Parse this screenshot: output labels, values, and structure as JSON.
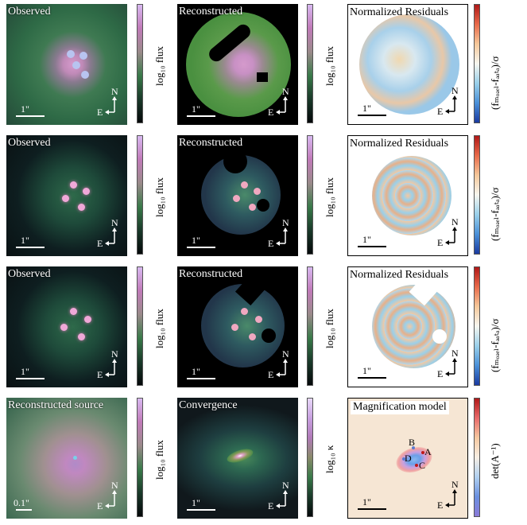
{
  "panels": {
    "observed_title": "Observed",
    "reconstructed_title": "Reconstructed",
    "residual_title": "Normalized Residuals",
    "source_title": "Reconstructed source",
    "convergence_title": "Convergence",
    "magnification_title": "Magnification model"
  },
  "scale": {
    "one_arcsec": "1\"",
    "tenth_arcsec": "0.1\""
  },
  "compass": {
    "north": "N",
    "east": "E"
  },
  "colorbars": {
    "flux_label": "log₁₀ flux",
    "residual_label": "(fₘₒₔₑₗ-fₔₐₜₐ)/σ",
    "kappa_label": "log₁₀ κ",
    "detA_label": "det(A⁻¹)"
  },
  "image_labels": [
    "A",
    "B",
    "C",
    "D"
  ],
  "colors": {
    "background_dark": "#0a1010",
    "observed_green": "#2f7a4a",
    "pink_core": "#d99ad0",
    "residual_blue": "#6fb0e0",
    "residual_red": "#e06a4a",
    "mag_bg": "#f6e6d4"
  }
}
